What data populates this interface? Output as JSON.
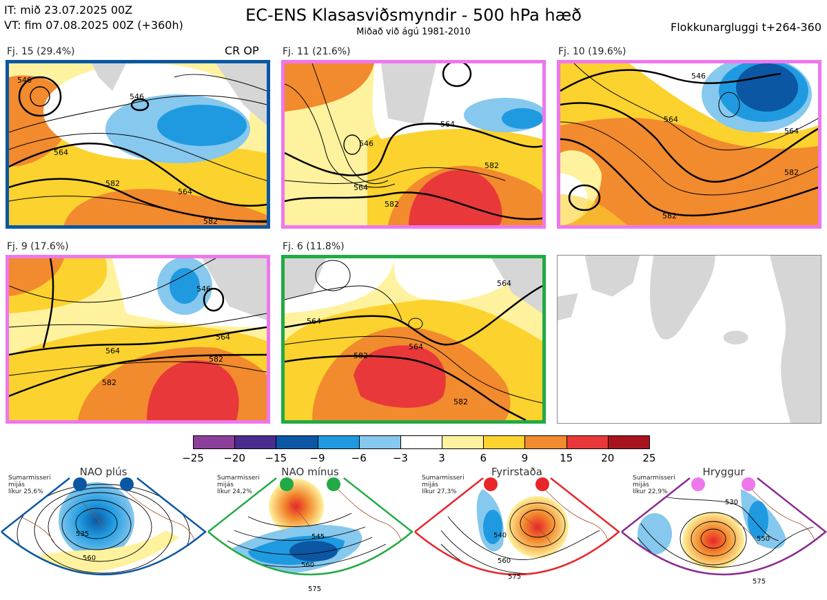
{
  "header": {
    "it": "IT: mið 23.07.2025 00Z",
    "vt": "VT: fim 07.08.2025 00Z  (+360h)",
    "title": "EC-ENS Klasasviðsmyndir - 500 hPa hæð",
    "subtitle": "Miðað við ágú 1981-2010",
    "window": "Flokkunargluggi t+264-360"
  },
  "panels": [
    {
      "label": "Fj. 15 (29.4%)",
      "tag": "CR OP",
      "border": "#0b57a4",
      "contours": [
        "546",
        "546",
        "564",
        "564",
        "582",
        "582"
      ]
    },
    {
      "label": "Fj. 11 (21.6%)",
      "tag": "",
      "border": "#ee77ee",
      "contours": [
        "546",
        "564",
        "564",
        "582",
        "582"
      ]
    },
    {
      "label": "Fj. 10 (19.6%)",
      "tag": "",
      "border": "#ee77ee",
      "contours": [
        "546",
        "564",
        "564",
        "582",
        "582"
      ]
    },
    {
      "label": "Fj. 9 (17.6%)",
      "tag": "",
      "border": "#ee77ee",
      "contours": [
        "546",
        "564",
        "564",
        "582",
        "582"
      ]
    },
    {
      "label": "Fj. 6 (11.8%)",
      "tag": "",
      "border": "#22aa44",
      "contours": [
        "564",
        "564",
        "564",
        "582",
        "582"
      ]
    }
  ],
  "colorbar": {
    "colors": [
      "#8d3f9c",
      "#4a2c8f",
      "#0b57a4",
      "#1f9ae0",
      "#86c8ee",
      "#ffffff",
      "#fff29e",
      "#fbd22e",
      "#f28a2e",
      "#e8383a",
      "#a8141e"
    ],
    "ticks": [
      "−25",
      "−20",
      "−15",
      "−9",
      "−6",
      "−3",
      "3",
      "6",
      "9",
      "15",
      "20",
      "25"
    ]
  },
  "regimes": [
    {
      "title": "NAO plús",
      "info": [
        "Sumarmisseri",
        "mijás",
        "líkur 25,6%"
      ],
      "color": "#0b57a4",
      "contours": [
        "535",
        "560"
      ]
    },
    {
      "title": "NAO mínus",
      "info": [
        "Sumarmisseri",
        "mijás",
        "líkur 24,2%"
      ],
      "color": "#22aa44",
      "contours": [
        "545",
        "560",
        "575"
      ]
    },
    {
      "title": "Fyrirstaða",
      "info": [
        "Sumarmisseri",
        "mijás",
        "líkur 27,3%"
      ],
      "color": "#e8262a",
      "contours": [
        "540",
        "560",
        "575"
      ]
    },
    {
      "title": "Hryggur",
      "info": [
        "Sumarmisseri",
        "mijás",
        "líkur 22,9%"
      ],
      "color": "#ee77ee",
      "contours": [
        "530",
        "550",
        "575"
      ]
    }
  ]
}
